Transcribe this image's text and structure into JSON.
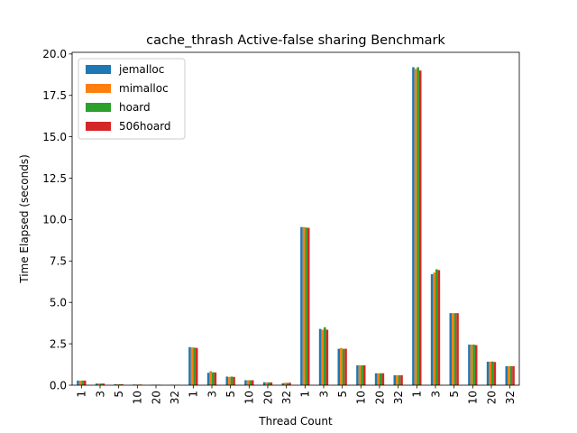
{
  "chart_data": {
    "type": "bar",
    "title": "cache_thrash Active-false sharing Benchmark",
    "xlabel": "Thread Count",
    "ylabel": "Time Elapsed (seconds)",
    "ylim": [
      0,
      20.1
    ],
    "yticks": [
      "0.0",
      "2.5",
      "5.0",
      "7.5",
      "10.0",
      "12.5",
      "15.0",
      "17.5",
      "20.0"
    ],
    "ytick_values": [
      0,
      2.5,
      5,
      7.5,
      10,
      12.5,
      15,
      17.5,
      20
    ],
    "categories": [
      "1",
      "3",
      "5",
      "10",
      "20",
      "32",
      "1",
      "3",
      "5",
      "10",
      "20",
      "32",
      "1",
      "3",
      "5",
      "10",
      "20",
      "32",
      "1",
      "3",
      "5",
      "10",
      "20",
      "32"
    ],
    "legend_position": "top-left",
    "grid": false,
    "series": [
      {
        "name": "jemalloc",
        "color": "#1f77b4",
        "values": [
          0.28,
          0.1,
          0.06,
          0.04,
          0.03,
          0.02,
          2.3,
          0.75,
          0.52,
          0.3,
          0.18,
          0.12,
          9.55,
          3.4,
          2.2,
          1.2,
          0.72,
          0.6,
          19.2,
          6.7,
          4.35,
          2.45,
          1.42,
          1.15
        ]
      },
      {
        "name": "mimalloc",
        "color": "#ff7f0e",
        "values": [
          0.27,
          0.1,
          0.06,
          0.04,
          0.03,
          0.02,
          2.28,
          0.85,
          0.5,
          0.3,
          0.17,
          0.15,
          9.55,
          3.35,
          2.25,
          1.2,
          0.72,
          0.6,
          19.1,
          6.8,
          4.35,
          2.45,
          1.42,
          1.15
        ]
      },
      {
        "name": "hoard",
        "color": "#2ca02c",
        "values": [
          0.28,
          0.1,
          0.06,
          0.04,
          0.03,
          0.02,
          2.27,
          0.78,
          0.52,
          0.3,
          0.17,
          0.14,
          9.52,
          3.5,
          2.2,
          1.2,
          0.72,
          0.6,
          19.2,
          7.0,
          4.35,
          2.45,
          1.43,
          1.15
        ]
      },
      {
        "name": "506hoard",
        "color": "#d62728",
        "values": [
          0.28,
          0.1,
          0.06,
          0.04,
          0.03,
          0.02,
          2.25,
          0.77,
          0.5,
          0.3,
          0.17,
          0.15,
          9.5,
          3.35,
          2.2,
          1.2,
          0.72,
          0.6,
          19.0,
          6.95,
          4.35,
          2.42,
          1.4,
          1.15
        ]
      }
    ]
  }
}
